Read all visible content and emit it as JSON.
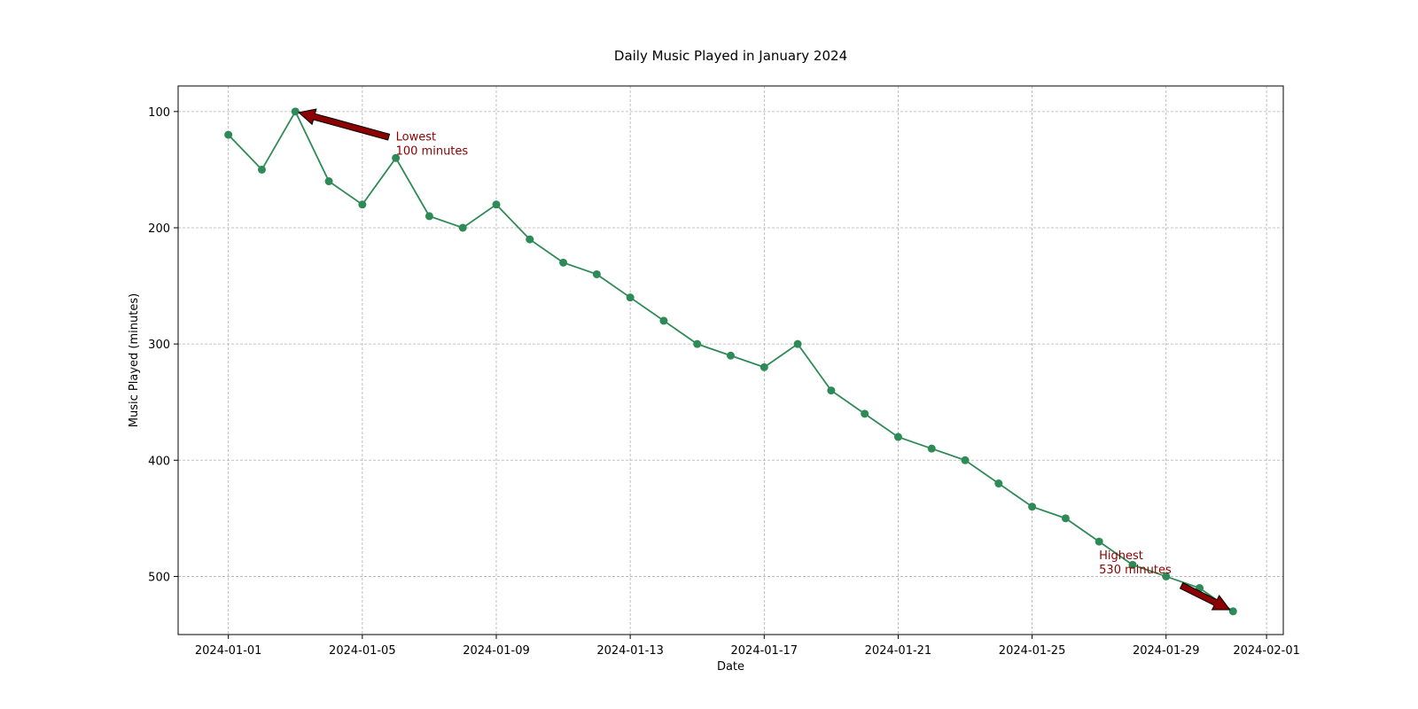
{
  "chart_data": {
    "type": "line",
    "title": "Daily Music Played in January 2024",
    "xlabel": "Date",
    "ylabel": "Music Played (minutes)",
    "x": [
      "2024-01-01",
      "2024-01-02",
      "2024-01-03",
      "2024-01-04",
      "2024-01-05",
      "2024-01-06",
      "2024-01-07",
      "2024-01-08",
      "2024-01-09",
      "2024-01-10",
      "2024-01-11",
      "2024-01-12",
      "2024-01-13",
      "2024-01-14",
      "2024-01-15",
      "2024-01-16",
      "2024-01-17",
      "2024-01-18",
      "2024-01-19",
      "2024-01-20",
      "2024-01-21",
      "2024-01-22",
      "2024-01-23",
      "2024-01-24",
      "2024-01-25",
      "2024-01-26",
      "2024-01-27",
      "2024-01-28",
      "2024-01-29",
      "2024-01-30",
      "2024-01-31"
    ],
    "series": [
      {
        "values": [
          120,
          150,
          100,
          160,
          180,
          140,
          190,
          200,
          180,
          210,
          230,
          240,
          260,
          280,
          300,
          310,
          320,
          300,
          340,
          360,
          380,
          390,
          400,
          420,
          440,
          450,
          470,
          490,
          500,
          510,
          530
        ],
        "color": "#2e8b57",
        "marker": "circle"
      }
    ],
    "xlim": [
      "2023-12-30T12:00",
      "2024-02-01T12:00"
    ],
    "ylim": [
      550,
      78
    ],
    "y_axis_inverted": true,
    "xticks": [
      "2024-01-01",
      "2024-01-05",
      "2024-01-09",
      "2024-01-13",
      "2024-01-17",
      "2024-01-21",
      "2024-01-25",
      "2024-01-29",
      "2024-02-01"
    ],
    "yticks": [
      100,
      200,
      300,
      400,
      500
    ],
    "grid": true,
    "annotations": [
      {
        "lines": [
          "Lowest",
          "100 minutes"
        ],
        "target_x": "2024-01-03",
        "target_y": 100,
        "text_x": "2024-01-06",
        "text_y": 125,
        "color": "#8b0000"
      },
      {
        "lines": [
          "Highest",
          "530 minutes"
        ],
        "target_x": "2024-01-31",
        "target_y": 530,
        "text_x": "2024-01-27",
        "text_y": 485,
        "color": "#8b0000"
      }
    ]
  }
}
